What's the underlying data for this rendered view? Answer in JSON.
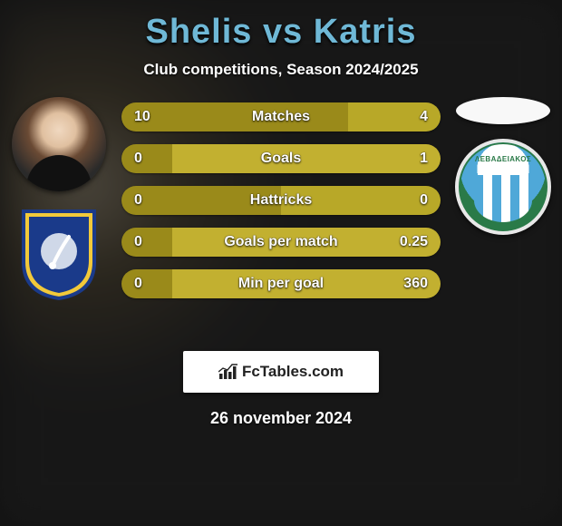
{
  "title": "Shelis vs Katris",
  "subtitle": "Club competitions, Season 2024/2025",
  "date": "26 november 2024",
  "watermark": "FcTables.com",
  "club_right_text": "ΛΕΒΑΔΕΙΑΚΟΣ",
  "colors": {
    "title": "#6fb8d6",
    "bar_left": "#9a8a1a",
    "bar_right": "#b8a828",
    "bar_right_dominant": "#c2b030"
  },
  "bars": [
    {
      "metric": "Matches",
      "left_label": "10",
      "right_label": "4",
      "left_pct": 71
    },
    {
      "metric": "Goals",
      "left_label": "0",
      "right_label": "1",
      "left_pct": 16
    },
    {
      "metric": "Hattricks",
      "left_label": "0",
      "right_label": "0",
      "left_pct": 50
    },
    {
      "metric": "Goals per match",
      "left_label": "0",
      "right_label": "0.25",
      "left_pct": 16
    },
    {
      "metric": "Min per goal",
      "left_label": "0",
      "right_label": "360",
      "left_pct": 16
    }
  ]
}
